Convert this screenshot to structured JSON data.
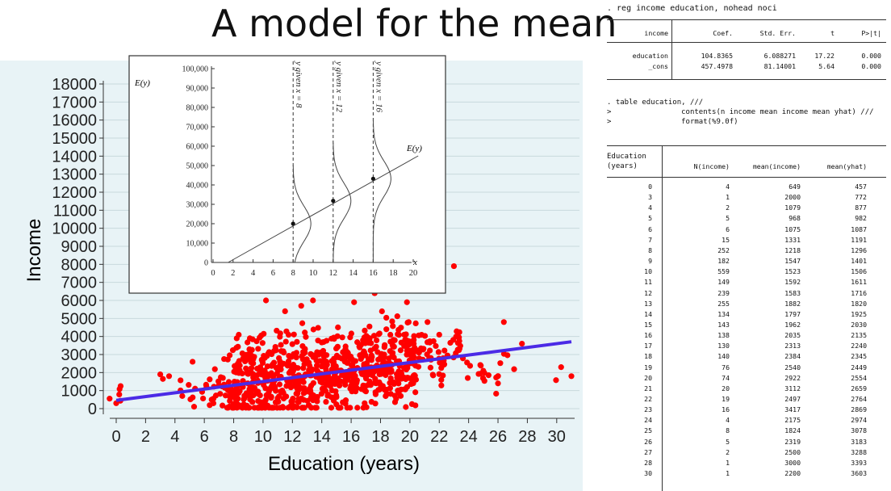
{
  "slide_title": "A model for the mean",
  "chart_data": [
    {
      "type": "scatter",
      "xlabel": "Education (years)",
      "ylabel": "Income",
      "xlim": [
        0,
        31
      ],
      "ylim": [
        0,
        18000
      ],
      "x_ticks": [
        0,
        2,
        4,
        6,
        8,
        10,
        12,
        14,
        16,
        18,
        20,
        22,
        24,
        26,
        28,
        30
      ],
      "y_ticks": [
        0,
        1000,
        2000,
        3000,
        4000,
        5000,
        6000,
        7000,
        8000,
        9000,
        10000,
        11000,
        12000,
        13000,
        14000,
        15000,
        16000,
        17000,
        18000
      ],
      "background": "#e8f3f6",
      "grid": true,
      "point_color": "#ff0000",
      "line_color": "#4b2be6",
      "regression_line": {
        "x": [
          0,
          31
        ],
        "y": [
          457.4978,
          3707.4
        ]
      },
      "outliers": [
        {
          "x": 0,
          "y": 300
        },
        {
          "x": 0.3,
          "y": 1250
        },
        {
          "x": 3,
          "y": 1900
        },
        {
          "x": 3.6,
          "y": 1800
        },
        {
          "x": 4.5,
          "y": 700
        },
        {
          "x": 5.2,
          "y": 2600
        },
        {
          "x": 6.5,
          "y": 500
        },
        {
          "x": 7,
          "y": 1300
        },
        {
          "x": 9.1,
          "y": 3900
        },
        {
          "x": 10.2,
          "y": 6000
        },
        {
          "x": 11.5,
          "y": 5400
        },
        {
          "x": 12.6,
          "y": 5700
        },
        {
          "x": 13.4,
          "y": 6000
        },
        {
          "x": 16.2,
          "y": 5900
        },
        {
          "x": 17.6,
          "y": 6400
        },
        {
          "x": 19.8,
          "y": 5900
        },
        {
          "x": 21.2,
          "y": 4800
        },
        {
          "x": 22,
          "y": 4100
        },
        {
          "x": 23,
          "y": 7900
        },
        {
          "x": 25,
          "y": 2100
        },
        {
          "x": 26,
          "y": 1400
        },
        {
          "x": 26.4,
          "y": 4800
        },
        {
          "x": 30.3,
          "y": 2300
        },
        {
          "x": 31,
          "y": 1800
        }
      ]
    },
    {
      "type": "line",
      "xlabel": "x",
      "ylabel": "E(y)",
      "xlim": [
        0,
        21
      ],
      "ylim": [
        0,
        100000
      ],
      "x_ticks": [
        0,
        2,
        4,
        6,
        8,
        10,
        12,
        14,
        16,
        18,
        20
      ],
      "y_ticks": [
        0,
        10000,
        20000,
        30000,
        40000,
        50000,
        60000,
        70000,
        80000,
        90000,
        100000
      ],
      "y_tick_labels": [
        "0",
        "10,000",
        "20,000",
        "30,000",
        "40,000",
        "50,000",
        "60,000",
        "70,000",
        "80,000",
        "90,000",
        "100,000"
      ],
      "line_label": "E(y)",
      "line": {
        "x": [
          1.5,
          20.5
        ],
        "y": [
          0,
          55000
        ]
      },
      "conditional_distributions": [
        {
          "x": 8,
          "mean": 20000,
          "label": "y given x = 8"
        },
        {
          "x": 12,
          "mean": 31800,
          "label": "y given x = 12"
        },
        {
          "x": 16,
          "mean": 43200,
          "label": "y given x = 16"
        }
      ]
    }
  ],
  "stata": {
    "reg_command": ". reg income education, nohead noci",
    "reg_headers": [
      "income",
      "Coef.",
      "Std. Err.",
      "t",
      "P>|t|"
    ],
    "reg_rows": [
      [
        "education",
        "104.8365",
        "6.088271",
        "17.22",
        "0.000"
      ],
      [
        "_cons",
        "457.4978",
        "81.14001",
        "5.64",
        "0.000"
      ]
    ],
    "cmd_lines": [
      ". table education, ///",
      ">                contents(n income mean income mean yhat) ///",
      ">                format(%9.0f)"
    ],
    "table_header_line1": "Education",
    "table_header_line2": "(years)",
    "table_headers": [
      "N(income)",
      "mean(income)",
      "mean(yhat)"
    ],
    "table_rows": [
      [
        "0",
        "4",
        "649",
        "457"
      ],
      [
        "3",
        "1",
        "2000",
        "772"
      ],
      [
        "4",
        "2",
        "1079",
        "877"
      ],
      [
        "5",
        "5",
        "968",
        "982"
      ],
      [
        "6",
        "6",
        "1075",
        "1087"
      ],
      [
        "7",
        "15",
        "1331",
        "1191"
      ],
      [
        "8",
        "252",
        "1218",
        "1296"
      ],
      [
        "9",
        "182",
        "1547",
        "1401"
      ],
      [
        "10",
        "559",
        "1523",
        "1506"
      ],
      [
        "11",
        "149",
        "1592",
        "1611"
      ],
      [
        "12",
        "239",
        "1583",
        "1716"
      ],
      [
        "13",
        "255",
        "1882",
        "1820"
      ],
      [
        "14",
        "134",
        "1797",
        "1925"
      ],
      [
        "15",
        "143",
        "1962",
        "2030"
      ],
      [
        "16",
        "138",
        "2035",
        "2135"
      ],
      [
        "17",
        "130",
        "2313",
        "2240"
      ],
      [
        "18",
        "140",
        "2384",
        "2345"
      ],
      [
        "19",
        "76",
        "2540",
        "2449"
      ],
      [
        "20",
        "74",
        "2922",
        "2554"
      ],
      [
        "21",
        "20",
        "3112",
        "2659"
      ],
      [
        "22",
        "19",
        "2497",
        "2764"
      ],
      [
        "23",
        "16",
        "3417",
        "2869"
      ],
      [
        "24",
        "4",
        "2175",
        "2974"
      ],
      [
        "25",
        "8",
        "1824",
        "3078"
      ],
      [
        "26",
        "5",
        "2319",
        "3183"
      ],
      [
        "27",
        "2",
        "2500",
        "3288"
      ],
      [
        "28",
        "1",
        "3000",
        "3393"
      ],
      [
        "30",
        "1",
        "2200",
        "3603"
      ]
    ]
  }
}
